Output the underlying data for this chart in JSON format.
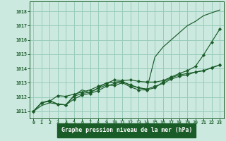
{
  "title": "Graphe pression niveau de la mer (hPa)",
  "hours": [
    0,
    1,
    2,
    3,
    4,
    5,
    6,
    7,
    8,
    9,
    10,
    11,
    12,
    13,
    14,
    15,
    16,
    17,
    18,
    19,
    20,
    21,
    22,
    23
  ],
  "ylim": [
    1010.5,
    1018.7
  ],
  "xlim": [
    -0.5,
    23.5
  ],
  "yticks": [
    1011,
    1012,
    1013,
    1014,
    1015,
    1016,
    1017,
    1018
  ],
  "background_color": "#cce9e0",
  "grid_color": "#99ccbb",
  "line_color": "#1a5c28",
  "label_bg": "#1a5c28",
  "series": [
    [
      1011.0,
      1011.4,
      1011.6,
      1011.5,
      1011.45,
      1012.1,
      1012.5,
      1012.3,
      1012.65,
      1013.0,
      1013.05,
      1013.1,
      1012.8,
      1012.65,
      1012.55,
      1014.8,
      1015.5,
      1016.0,
      1016.5,
      1017.0,
      1017.3,
      1017.7,
      1017.9,
      1018.1
    ],
    [
      1011.0,
      1011.6,
      1011.7,
      1012.1,
      1012.05,
      1012.2,
      1012.35,
      1012.5,
      1012.75,
      1012.95,
      1013.2,
      1013.15,
      1013.2,
      1013.1,
      1013.05,
      1013.05,
      1013.15,
      1013.4,
      1013.65,
      1013.85,
      1014.15,
      1014.95,
      1015.85,
      1016.75
    ],
    [
      1011.0,
      1011.6,
      1011.75,
      1011.5,
      1011.45,
      1012.05,
      1012.25,
      1012.35,
      1012.6,
      1012.85,
      1012.8,
      1013.0,
      1012.7,
      1012.5,
      1012.5,
      1012.65,
      1013.05,
      1013.35,
      1013.55,
      1013.65,
      1013.75,
      1013.85,
      1014.05,
      1014.25
    ],
    [
      1011.0,
      1011.6,
      1011.75,
      1011.5,
      1011.45,
      1011.85,
      1012.15,
      1012.25,
      1012.45,
      1012.75,
      1012.95,
      1013.05,
      1012.85,
      1012.65,
      1012.55,
      1012.75,
      1012.95,
      1013.25,
      1013.45,
      1013.55,
      1013.75,
      1013.85,
      1014.05,
      1014.25
    ]
  ]
}
